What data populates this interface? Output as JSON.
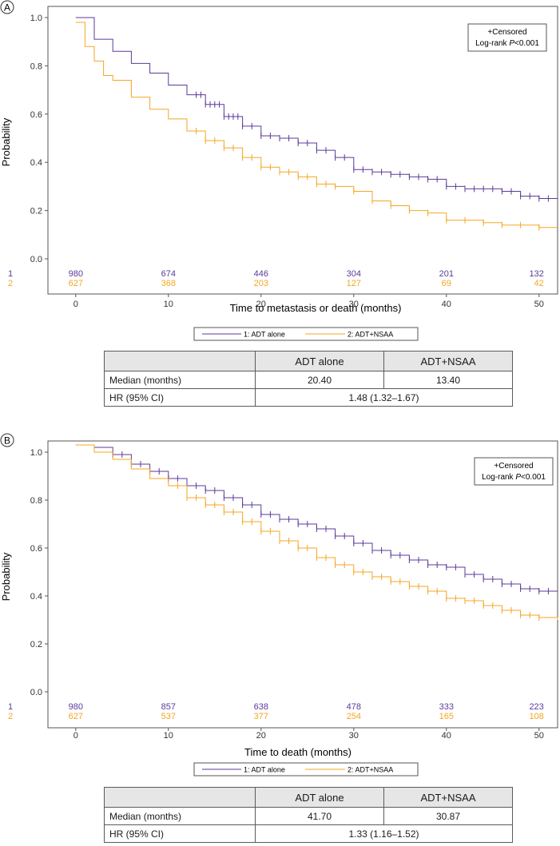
{
  "panels": [
    {
      "letter": "A",
      "ylabel": "Probability",
      "xlabel": "Time to metastasis or death (months)",
      "legend_box": [
        "+Censored",
        "Log-rank P<0.001"
      ],
      "series_legend": [
        "1: ADT alone",
        "2: ADT+NSAA"
      ],
      "at_risk": {
        "row_labels": [
          "1",
          "2"
        ],
        "times": [
          0,
          10,
          20,
          30,
          40,
          50
        ],
        "series1": [
          "980",
          "674",
          "446",
          "304",
          "201",
          "132"
        ],
        "series2": [
          "627",
          "368",
          "203",
          "127",
          "69",
          "42"
        ]
      },
      "table": {
        "headers": [
          "",
          "ADT alone",
          "ADT+NSAA"
        ],
        "rows": [
          [
            "Median (months)",
            "20.40",
            "13.40"
          ],
          [
            "HR (95% CI)",
            "1.48 (1.32–1.67)"
          ]
        ]
      }
    },
    {
      "letter": "B",
      "ylabel": "Probability",
      "xlabel": "Time to death (months)",
      "legend_box": [
        "+Censored",
        "Log-rank P<0.001"
      ],
      "series_legend": [
        "1: ADT alone",
        "2: ADT+NSAA"
      ],
      "at_risk": {
        "row_labels": [
          "1",
          "2"
        ],
        "times": [
          0,
          10,
          20,
          30,
          40,
          50
        ],
        "series1": [
          "980",
          "857",
          "638",
          "478",
          "333",
          "223"
        ],
        "series2": [
          "627",
          "537",
          "377",
          "254",
          "165",
          "108"
        ]
      },
      "table": {
        "headers": [
          "",
          "ADT alone",
          "ADT+NSAA"
        ],
        "rows": [
          [
            "Median (months)",
            "41.70",
            "30.87"
          ],
          [
            "HR (95% CI)",
            "1.33 (1.16–1.52)"
          ]
        ]
      }
    }
  ],
  "chart_data": [
    {
      "type": "line",
      "title": "",
      "xlabel": "Time to metastasis or death (months)",
      "ylabel": "Probability",
      "xlim": [
        -3,
        52
      ],
      "ylim": [
        -0.02,
        1.02
      ],
      "xticks": [
        0,
        10,
        20,
        30,
        40,
        50
      ],
      "yticks": [
        "0.0",
        "0.2",
        "0.4",
        "0.6",
        "0.8",
        "1.0"
      ],
      "grid": false,
      "legend": "bottom",
      "colors": {
        "series1": "#5b3a9a",
        "series2": "#f5a623"
      },
      "series": [
        {
          "name": "1: ADT alone",
          "x": [
            0,
            2,
            4,
            6,
            8,
            10,
            12,
            14,
            16,
            18,
            20,
            22,
            24,
            26,
            28,
            30,
            32,
            34,
            36,
            38,
            40,
            42,
            44,
            46,
            48,
            50,
            52
          ],
          "y": [
            1.0,
            0.91,
            0.86,
            0.81,
            0.77,
            0.72,
            0.68,
            0.64,
            0.59,
            0.55,
            0.51,
            0.5,
            0.48,
            0.45,
            0.42,
            0.37,
            0.36,
            0.35,
            0.34,
            0.33,
            0.3,
            0.29,
            0.29,
            0.28,
            0.26,
            0.25,
            0.24
          ],
          "censored_x": [
            13,
            13.5,
            14,
            14.5,
            15,
            15.5,
            16,
            16.5,
            17,
            17.5,
            18,
            19,
            20,
            21,
            22,
            23,
            24,
            25,
            26,
            27,
            28,
            29,
            30,
            31,
            32,
            33,
            34,
            35,
            36,
            37,
            38,
            39,
            40,
            41,
            42,
            43,
            44,
            45,
            46,
            47,
            48,
            49,
            50,
            51
          ]
        },
        {
          "name": "2: ADT+NSAA",
          "x": [
            0,
            1,
            2,
            3,
            4,
            6,
            8,
            10,
            12,
            14,
            16,
            18,
            20,
            22,
            24,
            26,
            28,
            30,
            32,
            34,
            36,
            38,
            40,
            42,
            44,
            46,
            48,
            50,
            52
          ],
          "y": [
            0.98,
            0.88,
            0.82,
            0.76,
            0.74,
            0.67,
            0.62,
            0.58,
            0.53,
            0.49,
            0.46,
            0.42,
            0.38,
            0.36,
            0.34,
            0.31,
            0.3,
            0.28,
            0.24,
            0.22,
            0.2,
            0.19,
            0.16,
            0.16,
            0.15,
            0.14,
            0.14,
            0.13,
            0.13
          ]
        }
      ],
      "censored_y1_note": "",
      "censored_x2": [
        13,
        14,
        15,
        16,
        17,
        18,
        19,
        20,
        21,
        22,
        23,
        24,
        25,
        26,
        27,
        28,
        30,
        32,
        34,
        36,
        38,
        40,
        42,
        44,
        46,
        48,
        50
      ]
    },
    {
      "type": "line",
      "title": "",
      "xlabel": "Time to death (months)",
      "ylabel": "Probability",
      "xlim": [
        -3,
        52
      ],
      "ylim": [
        -0.02,
        1.05
      ],
      "xticks": [
        0,
        10,
        20,
        30,
        40,
        50
      ],
      "yticks": [
        "0.0",
        "0.2",
        "0.4",
        "0.6",
        "0.8",
        "1.0"
      ],
      "grid": false,
      "legend": "bottom",
      "colors": {
        "series1": "#5b3a9a",
        "series2": "#f5a623"
      },
      "series": [
        {
          "name": "1: ADT alone",
          "x": [
            0,
            2,
            4,
            6,
            8,
            10,
            12,
            14,
            16,
            18,
            20,
            22,
            24,
            26,
            28,
            30,
            32,
            34,
            36,
            38,
            40,
            42,
            44,
            46,
            48,
            50,
            52
          ],
          "y": [
            1.03,
            1.02,
            0.99,
            0.95,
            0.92,
            0.89,
            0.86,
            0.84,
            0.81,
            0.78,
            0.74,
            0.72,
            0.7,
            0.68,
            0.65,
            0.62,
            0.59,
            0.57,
            0.55,
            0.53,
            0.52,
            0.49,
            0.47,
            0.45,
            0.43,
            0.42,
            0.42
          ],
          "censored_x": [
            4,
            5,
            6,
            7,
            8,
            9,
            10,
            11,
            12,
            13,
            14,
            15,
            16,
            17,
            18,
            19,
            20,
            21,
            22,
            23,
            24,
            25,
            26,
            27,
            28,
            29,
            30,
            31,
            32,
            33,
            34,
            35,
            36,
            37,
            38,
            39,
            40,
            41,
            42,
            43,
            44,
            45,
            46,
            47,
            48,
            49,
            50,
            51
          ]
        },
        {
          "name": "2: ADT+NSAA",
          "x": [
            0,
            2,
            4,
            6,
            8,
            10,
            12,
            14,
            16,
            18,
            20,
            22,
            24,
            26,
            28,
            30,
            32,
            34,
            36,
            38,
            40,
            42,
            44,
            46,
            48,
            50,
            52
          ],
          "y": [
            1.03,
            1.0,
            0.97,
            0.93,
            0.89,
            0.86,
            0.81,
            0.78,
            0.75,
            0.71,
            0.67,
            0.63,
            0.6,
            0.56,
            0.53,
            0.5,
            0.48,
            0.46,
            0.44,
            0.42,
            0.39,
            0.38,
            0.36,
            0.34,
            0.32,
            0.31,
            0.3
          ]
        }
      ],
      "censored_x2": [
        11,
        12,
        13,
        14,
        15,
        16,
        17,
        18,
        19,
        20,
        21,
        22,
        23,
        24,
        25,
        26,
        27,
        28,
        29,
        30,
        31,
        32,
        33,
        34,
        35,
        36,
        37,
        38,
        39,
        40,
        41,
        42,
        43,
        44,
        45,
        46,
        47,
        48,
        49,
        50
      ]
    }
  ]
}
